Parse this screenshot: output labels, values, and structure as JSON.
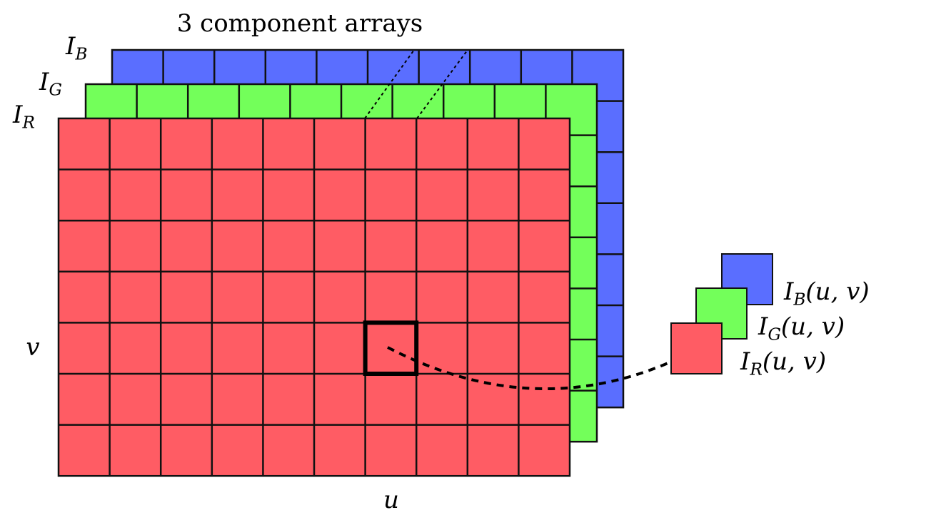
{
  "title": "3 component arrays",
  "grid": {
    "cols": 10,
    "rows": 7
  },
  "colors": {
    "red": "#ff5c64",
    "green": "#73ff5a",
    "blue": "#5a6eff",
    "line": "#111111"
  },
  "layers": [
    {
      "key": "blue",
      "sym": "I",
      "sub": "B"
    },
    {
      "key": "green",
      "sym": "I",
      "sub": "G"
    },
    {
      "key": "red",
      "sym": "I",
      "sub": "R"
    }
  ],
  "axes": {
    "u": "u",
    "v": "v"
  },
  "highlight": {
    "col": 6,
    "row": 4
  },
  "pixel_labels": [
    {
      "key": "blue",
      "sym": "I",
      "sub": "B",
      "args": "(u, v)"
    },
    {
      "key": "green",
      "sym": "I",
      "sub": "G",
      "args": "(u, v)"
    },
    {
      "key": "red",
      "sym": "I",
      "sub": "R",
      "args": "(u, v)"
    }
  ]
}
